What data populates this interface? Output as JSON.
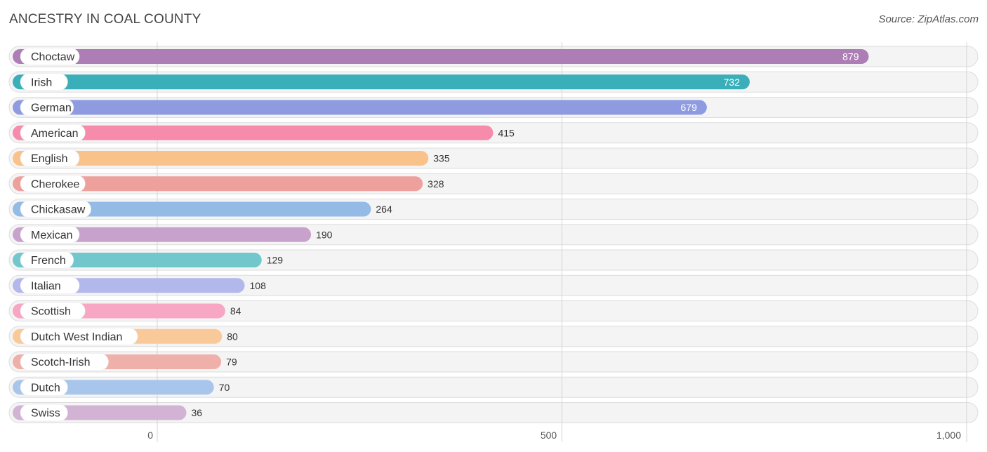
{
  "header": {
    "title": "ANCESTRY IN COAL COUNTY",
    "source": "Source: ZipAtlas.com"
  },
  "chart_data": {
    "type": "bar",
    "orientation": "horizontal",
    "title": "ANCESTRY IN COAL COUNTY",
    "categories": [
      "Choctaw",
      "Irish",
      "German",
      "American",
      "English",
      "Cherokee",
      "Chickasaw",
      "Mexican",
      "French",
      "Italian",
      "Scottish",
      "Dutch West Indian",
      "Scotch-Irish",
      "Dutch",
      "Swiss"
    ],
    "values": [
      879,
      732,
      679,
      415,
      335,
      328,
      264,
      190,
      129,
      108,
      84,
      80,
      79,
      70,
      36
    ],
    "value_labels": [
      "879",
      "732",
      "679",
      "415",
      "335",
      "328",
      "264",
      "190",
      "129",
      "108",
      "84",
      "80",
      "79",
      "70",
      "36"
    ],
    "colors": [
      "#ad7db5",
      "#3aafb9",
      "#8f9be0",
      "#f68bac",
      "#f9c28a",
      "#eda09c",
      "#94bbe6",
      "#c8a2cc",
      "#72c7cc",
      "#b3b8ec",
      "#f7a6c4",
      "#f9c99a",
      "#f0b0aa",
      "#a8c6ec",
      "#d2b3d6"
    ],
    "xlim": [
      0,
      1000
    ],
    "ticks": [
      0,
      500,
      1000
    ],
    "tick_labels": [
      "0",
      "500",
      "1,000"
    ],
    "grid": true,
    "legend": "none"
  }
}
